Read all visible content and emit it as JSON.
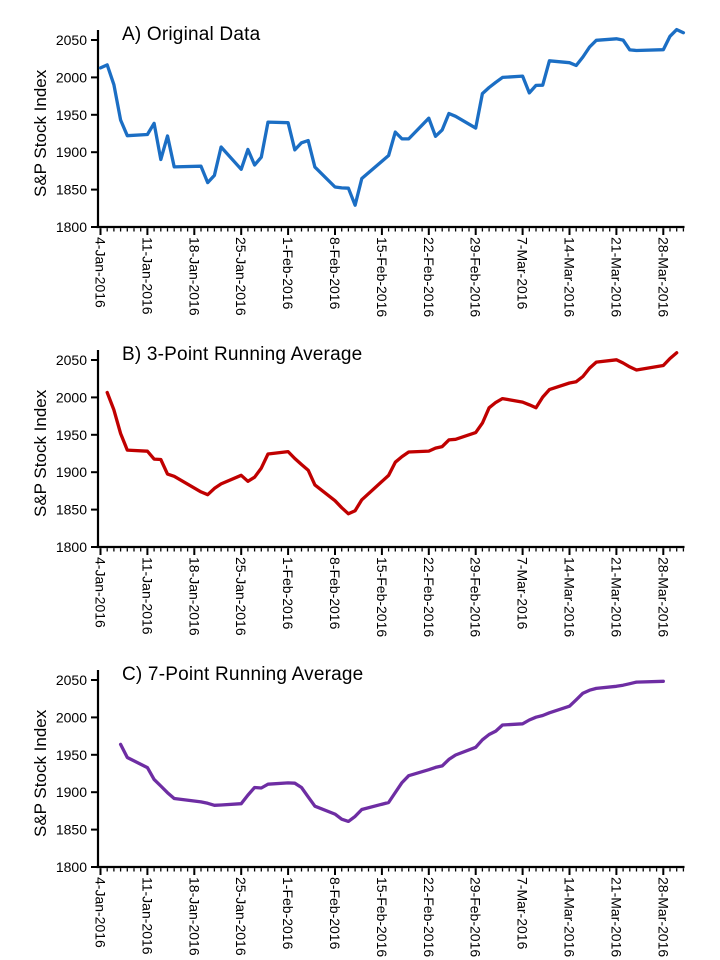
{
  "figure": {
    "background": "#ffffff",
    "axis_color": "#000000",
    "text_color": "#000000"
  },
  "chart_data": [
    {
      "type": "line",
      "panel_label": "A",
      "title": "A) Original Data",
      "ylabel": "S&P Stock Index",
      "line_color": "#1B6EC4",
      "grid": false,
      "legend": null,
      "ylim": [
        1800,
        2050
      ],
      "yticks": [
        1800,
        1850,
        1900,
        1950,
        2000,
        2050
      ],
      "x_axis": {
        "tick_labels": [
          "4-Jan-2016",
          "11-Jan-2016",
          "18-Jan-2016",
          "25-Jan-2016",
          "1-Feb-2016",
          "8-Feb-2016",
          "15-Feb-2016",
          "22-Feb-2016",
          "29-Feb-2016",
          "7-Mar-2016",
          "14-Mar-2016",
          "21-Mar-2016",
          "28-Mar-2016"
        ],
        "tick_day_offsets": [
          0,
          7,
          14,
          21,
          28,
          35,
          42,
          49,
          56,
          63,
          70,
          77,
          84
        ],
        "minor_tick_every_days": 1,
        "range_day_offsets": [
          0,
          87
        ]
      },
      "x_day_offsets": [
        0,
        1,
        2,
        3,
        4,
        7,
        8,
        9,
        10,
        11,
        15,
        16,
        17,
        18,
        21,
        22,
        23,
        24,
        25,
        28,
        29,
        30,
        31,
        32,
        35,
        36,
        37,
        38,
        39,
        43,
        44,
        45,
        46,
        49,
        50,
        51,
        52,
        53,
        56,
        57,
        58,
        59,
        60,
        63,
        64,
        65,
        66,
        67,
        70,
        71,
        72,
        73,
        74,
        77,
        78,
        79,
        80,
        84,
        85,
        86,
        87
      ],
      "values": [
        2012.66,
        2016.71,
        1990.26,
        1943.09,
        1922.03,
        1923.67,
        1938.68,
        1890.28,
        1921.84,
        1880.33,
        1881.33,
        1859.33,
        1868.99,
        1906.9,
        1877.08,
        1903.63,
        1882.95,
        1893.36,
        1940.24,
        1939.38,
        1903.03,
        1912.53,
        1915.45,
        1880.05,
        1853.44,
        1852.21,
        1851.86,
        1829.08,
        1864.78,
        1895.58,
        1926.82,
        1917.83,
        1917.78,
        1945.5,
        1921.27,
        1929.8,
        1951.7,
        1948.05,
        1932.23,
        1978.35,
        1986.45,
        1993.4,
        1999.99,
        2001.76,
        1979.26,
        1989.26,
        1989.57,
        2022.19,
        2019.64,
        2015.93,
        2027.22,
        2040.59,
        2049.58,
        2051.6,
        2049.8,
        2036.71,
        2035.94,
        2037.05,
        2055.01,
        2063.95,
        2059.74
      ],
      "derived": null
    },
    {
      "type": "line",
      "panel_label": "B",
      "title": "B) 3-Point Running Average",
      "ylabel": "S&P Stock Index",
      "line_color": "#C00000",
      "grid": false,
      "legend": null,
      "ylim": [
        1800,
        2050
      ],
      "yticks": [
        1800,
        1850,
        1900,
        1950,
        2000,
        2050
      ],
      "x_axis": {
        "tick_labels": [
          "4-Jan-2016",
          "11-Jan-2016",
          "18-Jan-2016",
          "25-Jan-2016",
          "1-Feb-2016",
          "8-Feb-2016",
          "15-Feb-2016",
          "22-Feb-2016",
          "29-Feb-2016",
          "7-Mar-2016",
          "14-Mar-2016",
          "21-Mar-2016",
          "28-Mar-2016"
        ],
        "tick_day_offsets": [
          0,
          7,
          14,
          21,
          28,
          35,
          42,
          49,
          56,
          63,
          70,
          77,
          84
        ],
        "minor_tick_every_days": 1,
        "range_day_offsets": [
          0,
          87
        ]
      },
      "derived": {
        "source_chart": 0,
        "window": 3,
        "centered": true,
        "description": "3-point centered running average of the original data points"
      }
    },
    {
      "type": "line",
      "panel_label": "C",
      "title": "C) 7-Point Running Average",
      "ylabel": "S&P Stock Index",
      "line_color": "#6E2DA3",
      "grid": false,
      "legend": null,
      "ylim": [
        1800,
        2050
      ],
      "yticks": [
        1800,
        1850,
        1900,
        1950,
        2000,
        2050
      ],
      "x_axis": {
        "tick_labels": [
          "4-Jan-2016",
          "11-Jan-2016",
          "18-Jan-2016",
          "25-Jan-2016",
          "1-Feb-2016",
          "8-Feb-2016",
          "15-Feb-2016",
          "22-Feb-2016",
          "29-Feb-2016",
          "7-Mar-2016",
          "14-Mar-2016",
          "21-Mar-2016",
          "28-Mar-2016"
        ],
        "tick_day_offsets": [
          0,
          7,
          14,
          21,
          28,
          35,
          42,
          49,
          56,
          63,
          70,
          77,
          84
        ],
        "minor_tick_every_days": 1,
        "range_day_offsets": [
          0,
          87
        ]
      },
      "derived": {
        "source_chart": 0,
        "window": 7,
        "centered": true,
        "description": "7-point centered running average of the original data points"
      }
    }
  ]
}
